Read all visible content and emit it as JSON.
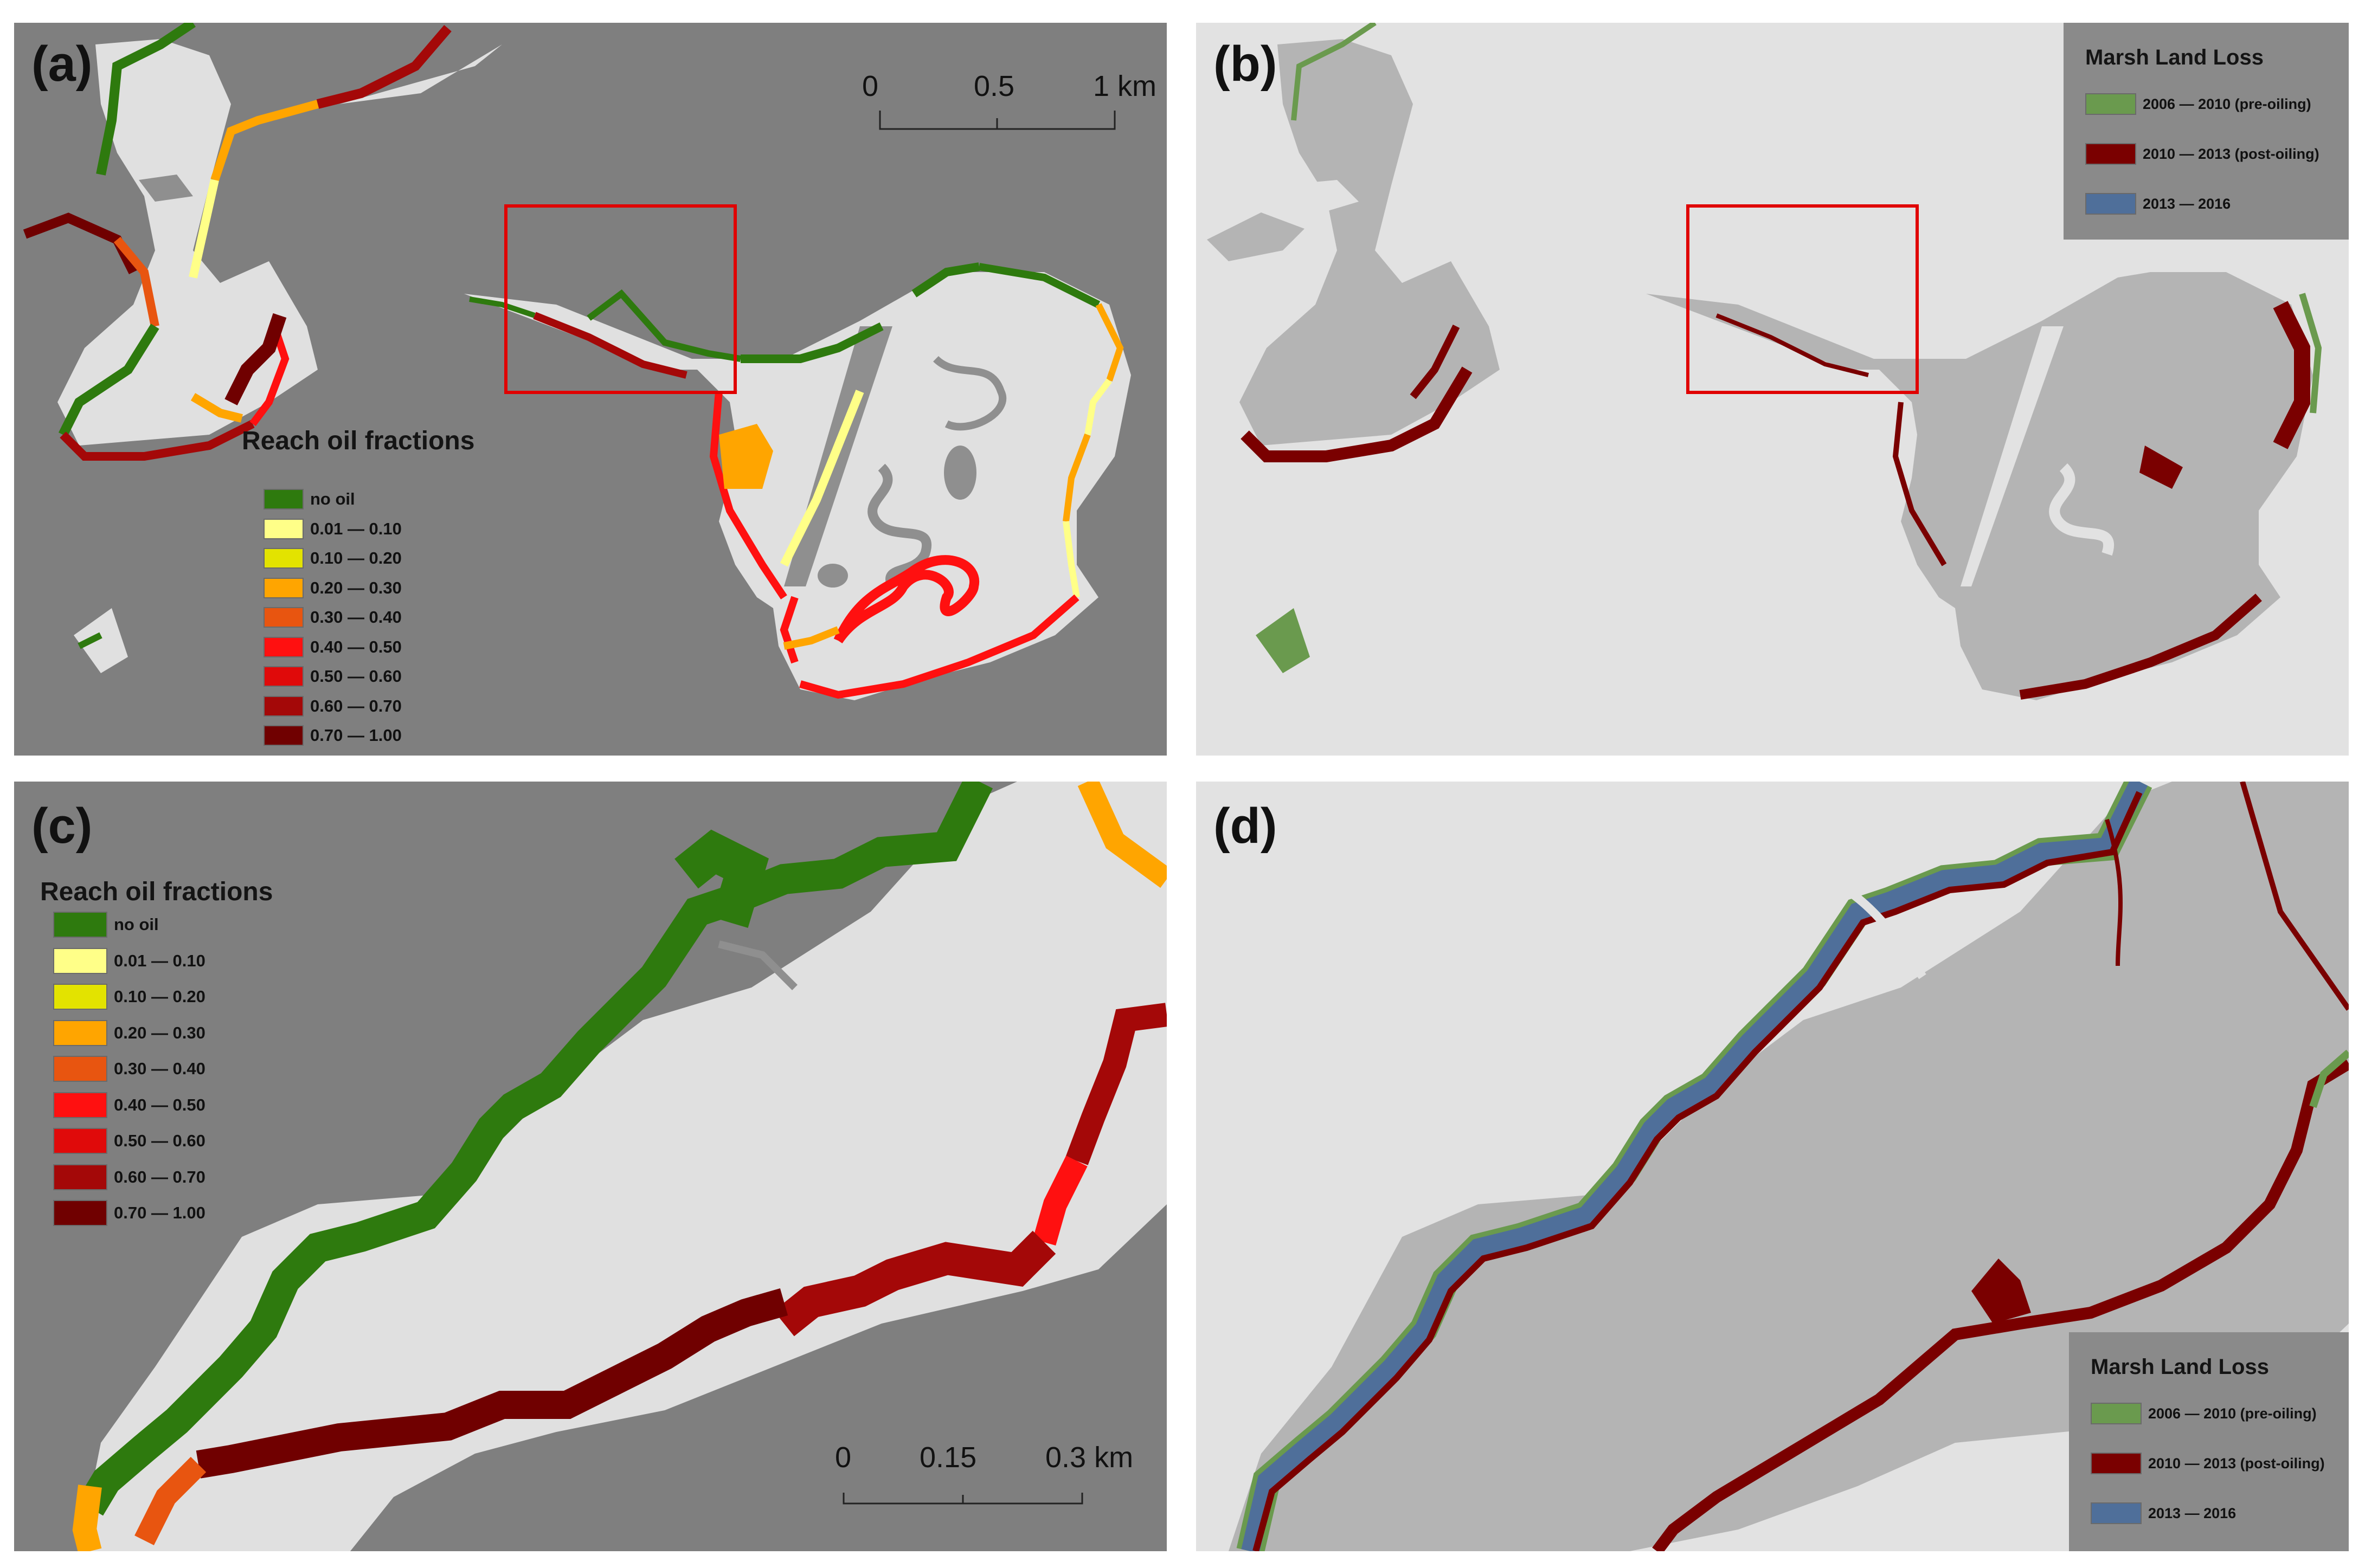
{
  "panels": [
    {
      "label": "(a)"
    },
    {
      "label": "(b)"
    },
    {
      "label": "(c)"
    },
    {
      "label": "(d)"
    }
  ],
  "oil_legend": {
    "title": "Reach oil fractions",
    "items": [
      {
        "label": "no oil",
        "color": "#2e7a0e"
      },
      {
        "label": "0.01 — 0.10",
        "color": "#ffff88"
      },
      {
        "label": "0.10 — 0.20",
        "color": "#e3e300"
      },
      {
        "label": "0.20 — 0.30",
        "color": "#ffa500"
      },
      {
        "label": "0.30 — 0.40",
        "color": "#e85510"
      },
      {
        "label": "0.40 — 0.50",
        "color": "#ff1010"
      },
      {
        "label": "0.50 — 0.60",
        "color": "#e00a0a"
      },
      {
        "label": "0.60 — 0.70",
        "color": "#a40808"
      },
      {
        "label": "0.70 — 1.00",
        "color": "#700000"
      }
    ]
  },
  "loss_legend": {
    "title": "Marsh Land Loss",
    "items": [
      {
        "label": "2006 — 2010 (pre-oiling)",
        "color": "#6a9a4e"
      },
      {
        "label": "2010 — 2013 (post-oiling)",
        "color": "#7a0000"
      },
      {
        "label": "2013 — 2016",
        "color": "#4f6f9a"
      }
    ]
  },
  "scalebar_a": {
    "ticks": [
      "0",
      "0.5",
      "1 km"
    ]
  },
  "scalebar_c": {
    "ticks": [
      "0",
      "0.15",
      "0.3 km"
    ]
  },
  "colors": {
    "water_oil_panels": "#7f7f7f",
    "land_oil_panels": "#e0e0e0",
    "water_loss_panels": "#e2e2e2",
    "land_loss_panels": "#b4b4b4",
    "inset_box": "#e00000"
  }
}
